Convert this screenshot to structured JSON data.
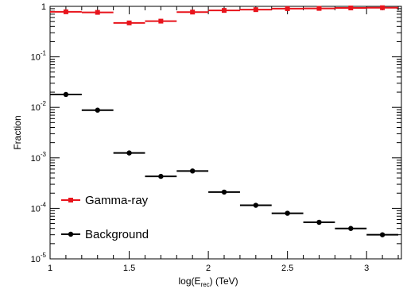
{
  "chart_data": {
    "type": "scatter",
    "xlabel": "log(E_rec) (TeV)",
    "ylabel": "Fraction",
    "xlim": [
      1.0,
      3.22
    ],
    "ylim": [
      1e-05,
      1
    ],
    "yscale": "log",
    "grid": false,
    "legend_position": "lower-left",
    "x_ticks": [
      "1",
      "1.5",
      "2",
      "2.5",
      "3"
    ],
    "y_ticks": [
      {
        "base": "10",
        "exp": "-5"
      },
      {
        "base": "10",
        "exp": "-4"
      },
      {
        "base": "10",
        "exp": "-3"
      },
      {
        "base": "10",
        "exp": "-2"
      },
      {
        "base": "10",
        "exp": "-1"
      },
      {
        "base": "1",
        "exp": ""
      }
    ],
    "series": [
      {
        "name": "Gamma-ray",
        "color": "#e8141c",
        "marker": "square",
        "x": [
          1.1,
          1.3,
          1.5,
          1.7,
          1.9,
          2.1,
          2.3,
          2.5,
          2.7,
          2.9,
          3.1
        ],
        "y": [
          0.78,
          0.76,
          0.47,
          0.51,
          0.77,
          0.83,
          0.86,
          0.9,
          0.91,
          0.93,
          0.94
        ],
        "xerr": 0.1
      },
      {
        "name": "Background",
        "color": "#000000",
        "marker": "circle",
        "x": [
          1.1,
          1.3,
          1.5,
          1.7,
          1.9,
          2.1,
          2.3,
          2.5,
          2.7,
          2.9,
          3.1
        ],
        "y": [
          0.018,
          0.0088,
          0.00125,
          0.00043,
          0.00055,
          0.00021,
          0.000115,
          8e-05,
          5.3e-05,
          4e-05,
          3e-05
        ],
        "xerr": 0.1
      }
    ]
  }
}
